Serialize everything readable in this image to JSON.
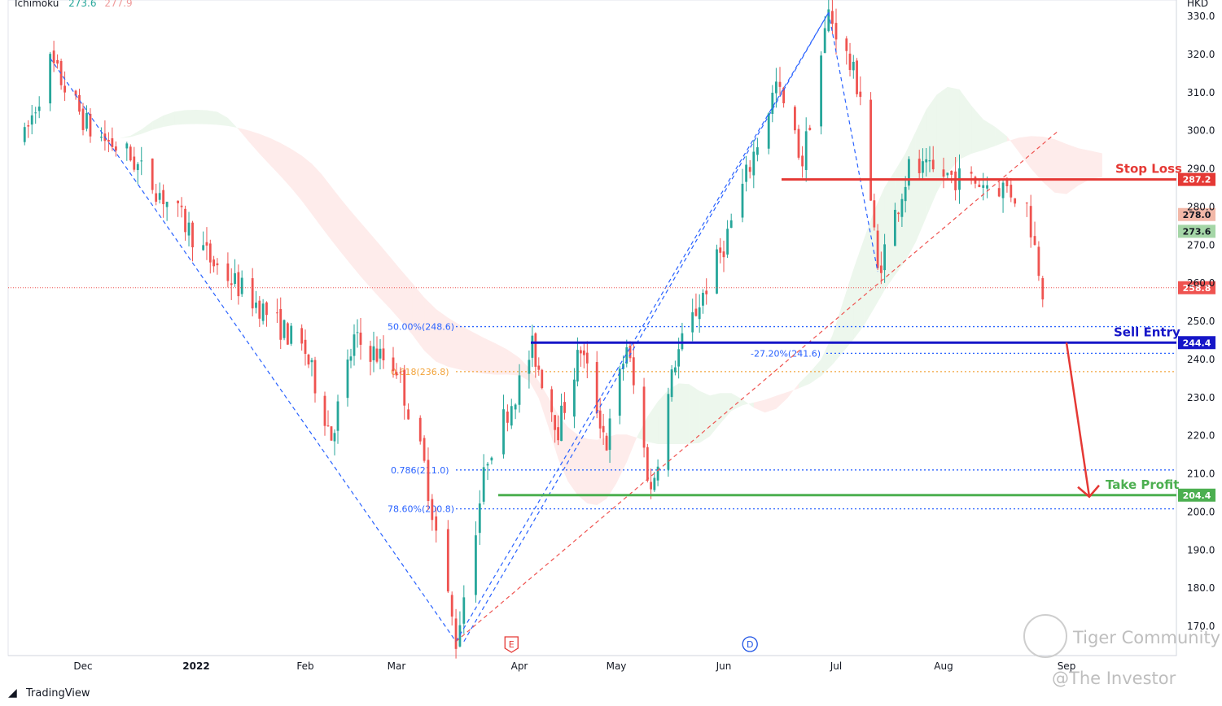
{
  "indicator": {
    "name": "Ichimoku",
    "v1": "273.6",
    "v2": "277.9"
  },
  "currency": "HKD",
  "branding": {
    "tradingview": "TradingView",
    "tiger": "Tiger Community",
    "investor": "@The Investor"
  },
  "colors": {
    "up": "#26a69a",
    "down": "#ef5350",
    "blue": "#1616c8",
    "green": "#4caf50",
    "red": "#e53935",
    "orange": "#f2a33a"
  },
  "chart_data": {
    "type": "candlestick",
    "ylim": [
      165,
      333
    ],
    "y_ticks": [
      170,
      180,
      190,
      200,
      210,
      220,
      230,
      240,
      250,
      260,
      270,
      280,
      290,
      300,
      310,
      320,
      330
    ],
    "x_labels": [
      "Dec",
      "2022",
      "Feb",
      "Mar",
      "Apr",
      "May",
      "Jun",
      "Jul",
      "Aug",
      "Sep"
    ],
    "price_path": [
      [
        "2021-11-15",
        298
      ],
      [
        "2021-11-22",
        318
      ],
      [
        "2021-12-03",
        300
      ],
      [
        "2021-12-13",
        294
      ],
      [
        "2021-12-27",
        278
      ],
      [
        "2022-01-05",
        266
      ],
      [
        "2022-01-19",
        254
      ],
      [
        "2022-02-01",
        242
      ],
      [
        "2022-02-09",
        220
      ],
      [
        "2022-02-16",
        245
      ],
      [
        "2022-03-01",
        238
      ],
      [
        "2022-03-08",
        212
      ],
      [
        "2022-03-16",
        166
      ],
      [
        "2022-03-24",
        215
      ],
      [
        "2022-04-05",
        243
      ],
      [
        "2022-04-13",
        222
      ],
      [
        "2022-04-20",
        243
      ],
      [
        "2022-04-28",
        218
      ],
      [
        "2022-05-04",
        244
      ],
      [
        "2022-05-11",
        205
      ],
      [
        "2022-05-18",
        240
      ],
      [
        "2022-06-01",
        270
      ],
      [
        "2022-06-15",
        312
      ],
      [
        "2022-06-22",
        292
      ],
      [
        "2022-06-29",
        331
      ],
      [
        "2022-07-08",
        310
      ],
      [
        "2022-07-13",
        263
      ],
      [
        "2022-07-22",
        290
      ],
      [
        "2022-08-03",
        288
      ],
      [
        "2022-08-17",
        285
      ],
      [
        "2022-08-22",
        280
      ],
      [
        "2022-08-26",
        259
      ]
    ],
    "levels": [
      {
        "name": "Stop Loss",
        "value": 287.2,
        "tag": "287.2"
      },
      {
        "name": "Sell Entry",
        "value": 244.4,
        "tag": "244.4"
      },
      {
        "name": "Take Profit",
        "value": 204.4,
        "tag": "204.4"
      }
    ],
    "fib_labels": [
      {
        "text": "50.00%(248.6)",
        "value": 248.6
      },
      {
        "text": "0.618(236.8)",
        "value": 236.8
      },
      {
        "text": "-27.20%(241.6)",
        "value": 241.6
      },
      {
        "text": "0.786(211.0)",
        "value": 211.0
      },
      {
        "text": "78.60%(200.8)",
        "value": 200.8
      }
    ],
    "price_tags": [
      {
        "text": "278.0",
        "value": 278.0
      },
      {
        "text": "273.6",
        "value": 273.6
      },
      {
        "text": "258.8",
        "value": 258.8
      }
    ],
    "events": [
      {
        "label": "E",
        "date": "2022-03-30"
      },
      {
        "label": "D",
        "date": "2022-06-08"
      }
    ]
  }
}
